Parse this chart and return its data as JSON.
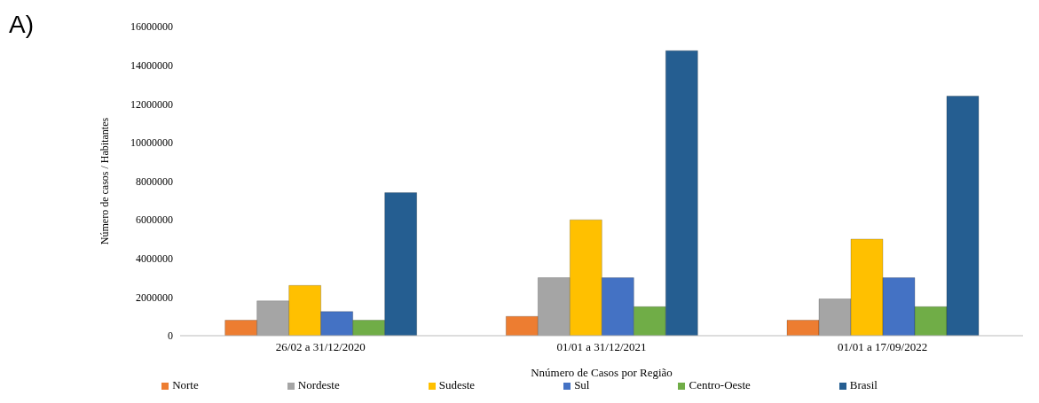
{
  "chart_data": {
    "type": "bar",
    "annotations": [
      "A)"
    ],
    "xlabel": "Nnúmero de Casos por Região",
    "ylabel": "Número de casos / Habitantes",
    "categories": [
      "26/02 a 31/12/2020",
      "01/01 a 31/12/2021",
      "01/01 a 17/09/2022"
    ],
    "series": [
      {
        "name": "Norte",
        "color": "#ed7d31",
        "values": [
          800000,
          1000000,
          800000
        ]
      },
      {
        "name": "Nordeste",
        "color": "#a5a5a5",
        "values": [
          1800000,
          3000000,
          1900000
        ]
      },
      {
        "name": "Sudeste",
        "color": "#ffc000",
        "values": [
          2600000,
          6000000,
          5000000
        ]
      },
      {
        "name": "Sul",
        "color": "#4472c4",
        "values": [
          1250000,
          3000000,
          3000000
        ]
      },
      {
        "name": "Centro-Oeste",
        "color": "#70ad47",
        "values": [
          800000,
          1500000,
          1500000
        ]
      },
      {
        "name": "Brasil",
        "color": "#255e91",
        "values": [
          7400000,
          14750000,
          12400000
        ]
      }
    ],
    "ylim": [
      0,
      16000000
    ],
    "yticks": [
      0,
      2000000,
      4000000,
      6000000,
      8000000,
      10000000,
      12000000,
      14000000,
      16000000
    ],
    "grid": false,
    "legend": "bottom"
  }
}
